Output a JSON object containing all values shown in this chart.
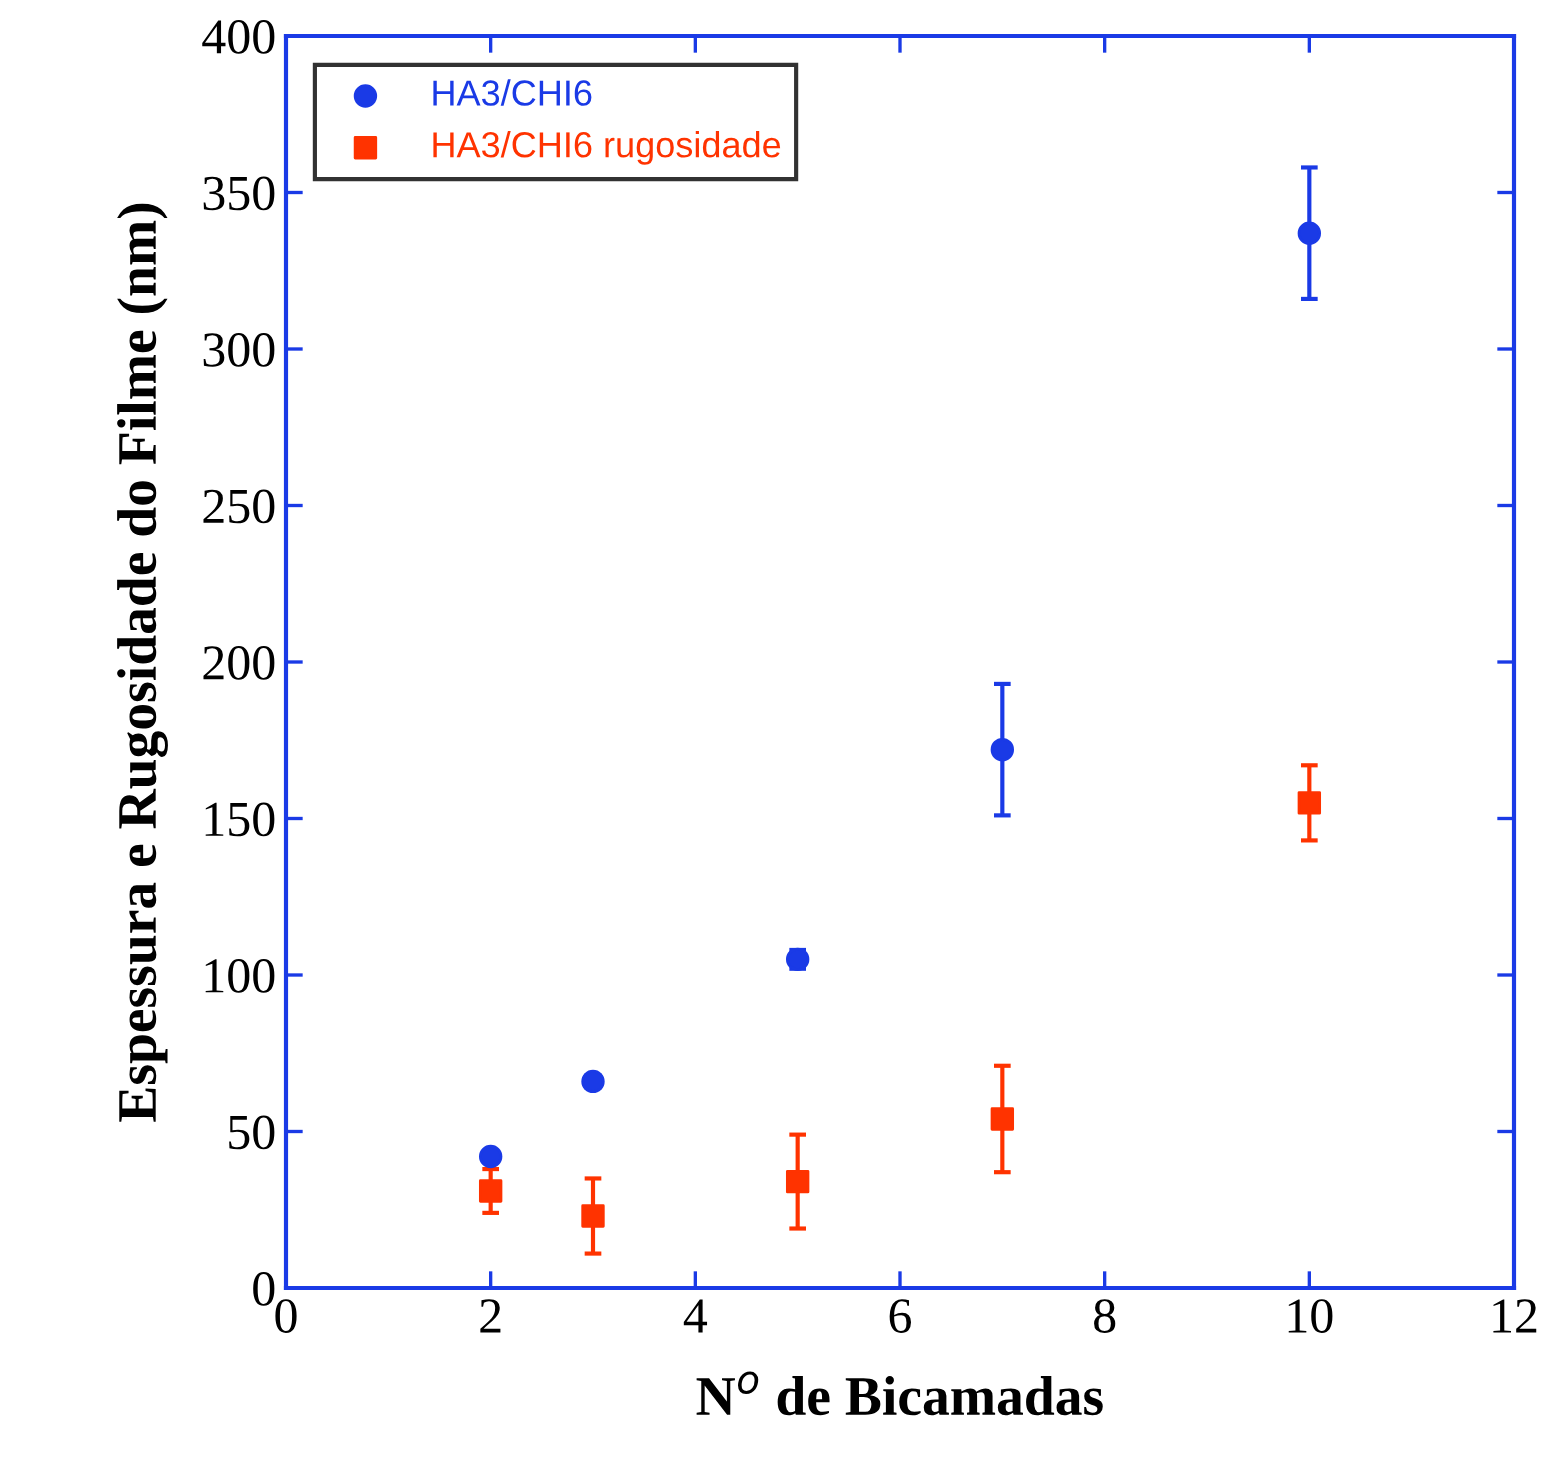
{
  "chart_data": {
    "type": "scatter",
    "xlabel": "N$^{o}$ de Bicamadas",
    "ylabel": "Espessura e Rugosidade do Filme (nm)",
    "xlim": [
      0,
      12
    ],
    "ylim": [
      0,
      400
    ],
    "xticks": [
      0,
      2,
      4,
      6,
      8,
      10,
      12
    ],
    "yticks": [
      0,
      50,
      100,
      150,
      200,
      250,
      300,
      350,
      400
    ],
    "grid": false,
    "legend": "top left",
    "series": [
      {
        "name": "HA3/CHI6",
        "color": "#1a3ae6",
        "marker": "circle",
        "x": [
          2,
          3,
          5,
          7,
          10
        ],
        "values": [
          42,
          66,
          105,
          172,
          337
        ],
        "errors": [
          null,
          2,
          3,
          21,
          21
        ]
      },
      {
        "name": "HA3/CHI6 rugosidade",
        "color": "#ff3300",
        "marker": "square",
        "x": [
          2,
          3,
          5,
          7,
          10
        ],
        "values": [
          31,
          23,
          34,
          54,
          155
        ],
        "errors": [
          7,
          12,
          15,
          17,
          12
        ]
      }
    ]
  }
}
